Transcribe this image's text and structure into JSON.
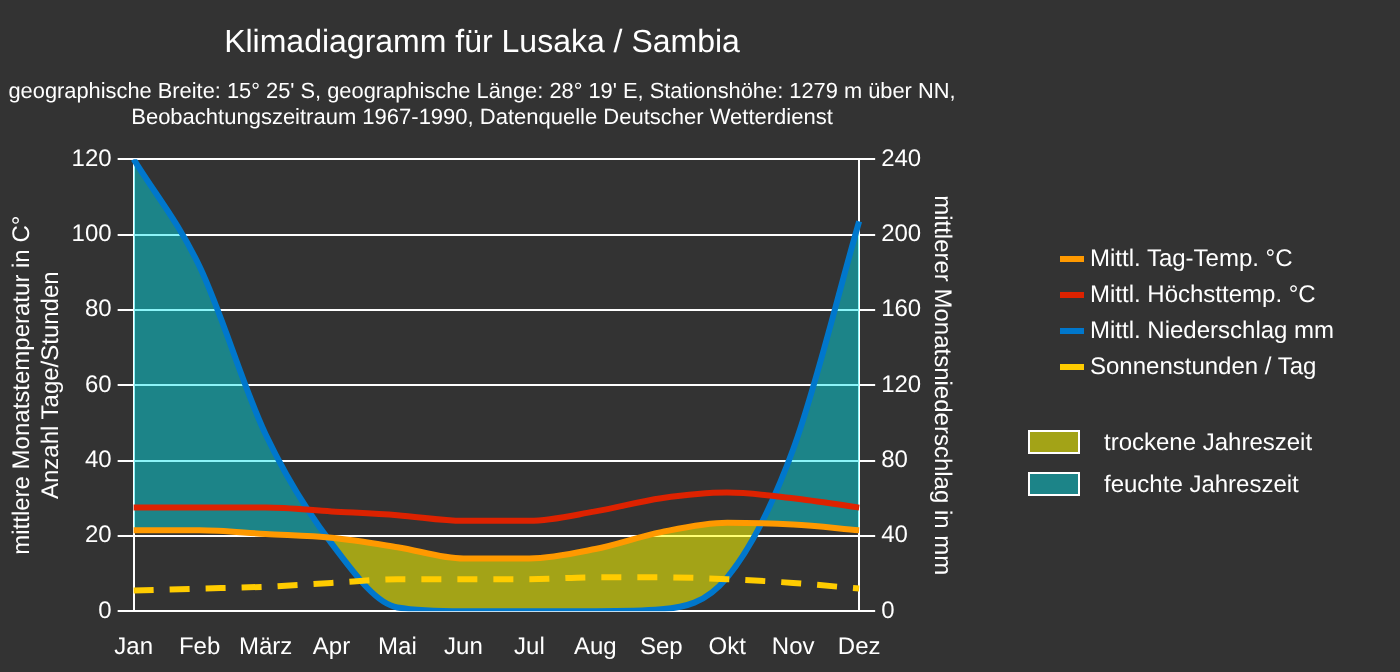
{
  "chart_data": {
    "type": "line",
    "title": "Klimadiagramm für Lusaka / Sambia",
    "subtitle": "geographische Breite: 15° 25' S, geographische Länge: 28° 19' E, Stationshöhe: 1279 m über NN,\nBeobachtungszeitraum 1967-1990, Datenquelle Deutscher Wetterdienst",
    "ylabel": "mittlere Monatstemperatur in C°\nAnzahl Tage/Stunden",
    "y2label": "mittlerer Monatsniederschlag in mm",
    "categories": [
      "Jan",
      "Feb",
      "März",
      "Apr",
      "Mai",
      "Jun",
      "Jul",
      "Aug",
      "Sep",
      "Okt",
      "Nov",
      "Dez"
    ],
    "series": [
      {
        "name": "Mittl. Tag-Temp. °C",
        "color": "#ff9900",
        "values": [
          21.5,
          21.5,
          20.5,
          19.5,
          17,
          14,
          14,
          16.5,
          21,
          23.5,
          23,
          21.5
        ]
      },
      {
        "name": "Mittl. Höchsttemp. °C",
        "color": "#dd2200",
        "values": [
          27.5,
          27.5,
          27.5,
          26.5,
          25.5,
          24,
          24,
          26.5,
          30,
          31.5,
          30,
          27.5
        ]
      },
      {
        "name": "Mittl. Niederschlag mm",
        "color": "#0077cc",
        "axis": "y2",
        "values": [
          240,
          183,
          94,
          36,
          2,
          0,
          0,
          0,
          1,
          18,
          86,
          207
        ]
      },
      {
        "name": "Sonnenstunden / Tag",
        "color": "#ffcc00",
        "line_style": "dashed",
        "values": [
          5.5,
          6,
          6.5,
          7.5,
          8.5,
          8.5,
          8.5,
          9,
          9,
          8.5,
          7.5,
          6
        ]
      }
    ],
    "ylim": [
      0,
      120
    ],
    "yticks": [
      0,
      20,
      40,
      60,
      80,
      100,
      120
    ],
    "y2lim": [
      0,
      240
    ],
    "y2ticks": [
      0,
      40,
      80,
      120,
      160,
      200,
      240
    ],
    "grid": "y",
    "legend": "right",
    "marker": "none",
    "annotations": [
      "trockene Jahreszeit",
      "feuchte Jahreszeit"
    ]
  }
}
